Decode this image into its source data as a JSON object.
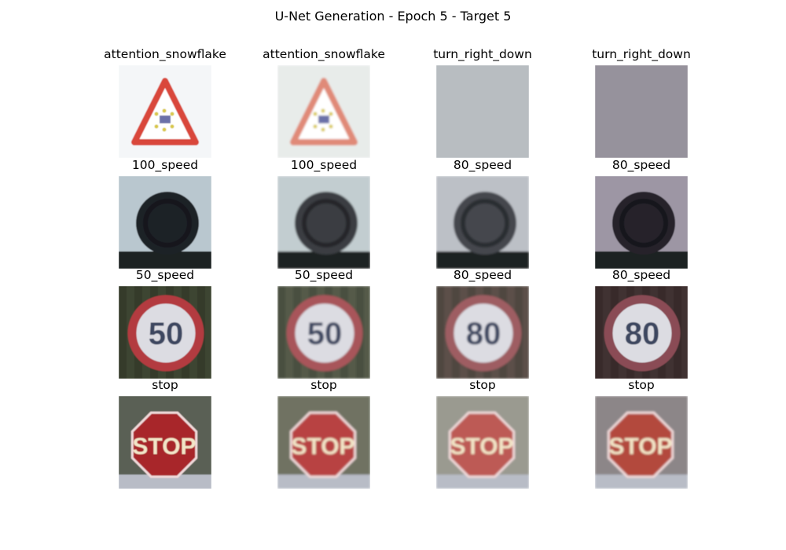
{
  "figure": {
    "title": "U-Net Generation - Epoch 5 - Target 5"
  },
  "rows": [
    {
      "cells": [
        {
          "label": "attention_snowflake",
          "image": "triangle-warning-sign",
          "bg": "#f4f6f8",
          "tint": "#d9473b",
          "variant": "sharp"
        },
        {
          "label": "attention_snowflake",
          "image": "triangle-warning-sign",
          "bg": "#e8ecea",
          "tint": "#e08a78",
          "variant": "soft"
        },
        {
          "label": "turn_right_down",
          "image": "blank-gray",
          "bg": "#b8bdc1"
        },
        {
          "label": "turn_right_down",
          "image": "blank-gray",
          "bg": "#96929c"
        }
      ]
    },
    {
      "cells": [
        {
          "label": "100_speed",
          "image": "round-dark-sign",
          "bg": "#b9c7cf",
          "tint": "#1e2028",
          "variant": "sharp"
        },
        {
          "label": "100_speed",
          "image": "round-dark-sign",
          "bg": "#c2cdd0",
          "tint": "#3a3e42",
          "variant": "soft"
        },
        {
          "label": "80_speed",
          "image": "round-dark-sign",
          "bg": "#bcc0c6",
          "tint": "#44464e",
          "variant": "soft"
        },
        {
          "label": "80_speed",
          "image": "round-dark-sign",
          "bg": "#9d96a4",
          "tint": "#25242c",
          "variant": "sharp"
        }
      ]
    },
    {
      "cells": [
        {
          "label": "50_speed",
          "image": "speed-limit-sign",
          "bg": "#3c4433",
          "tint": "#b33a3f",
          "text": "50",
          "variant": "sharp"
        },
        {
          "label": "50_speed",
          "image": "speed-limit-sign",
          "bg": "#545a48",
          "tint": "#a8545a",
          "text": "50",
          "variant": "soft"
        },
        {
          "label": "80_speed",
          "image": "speed-limit-sign",
          "bg": "#5c5048",
          "tint": "#9e5d62",
          "text": "80",
          "variant": "soft"
        },
        {
          "label": "80_speed",
          "image": "speed-limit-sign",
          "bg": "#3f3330",
          "tint": "#8a4c55",
          "text": "80",
          "variant": "sharp"
        }
      ]
    },
    {
      "cells": [
        {
          "label": "stop",
          "image": "stop-sign",
          "bg": "#5a6055",
          "tint": "#a8262b",
          "text": "STOP",
          "variant": "sharp"
        },
        {
          "label": "stop",
          "image": "stop-sign",
          "bg": "#707262",
          "tint": "#b84242",
          "text": "STOP",
          "variant": "soft"
        },
        {
          "label": "stop",
          "image": "stop-sign",
          "bg": "#9a9a90",
          "tint": "#bd5a55",
          "text": "STOP",
          "variant": "soft"
        },
        {
          "label": "stop",
          "image": "stop-sign",
          "bg": "#8c8688",
          "tint": "#b3493e",
          "text": "STOP",
          "variant": "soft"
        }
      ]
    }
  ]
}
